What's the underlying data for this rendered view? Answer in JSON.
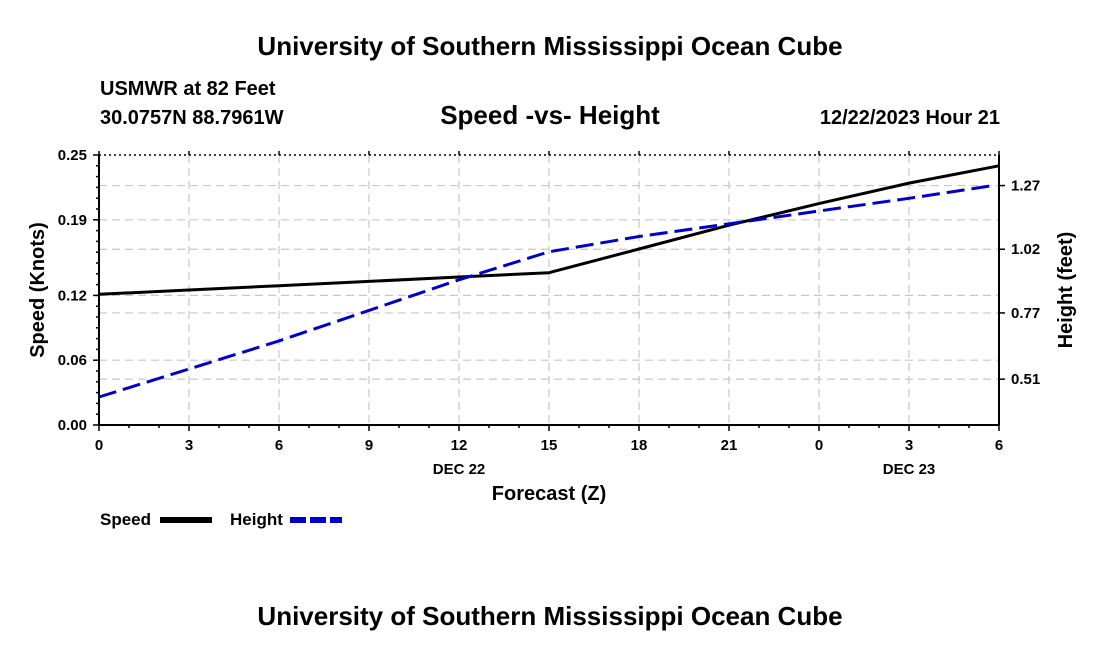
{
  "header": {
    "title_top": "University of Southern Mississippi Ocean Cube",
    "station": "USMWR at 82 Feet",
    "location": "30.0757N  88.7961W",
    "timestamp": "12/22/2023 Hour 21",
    "title_bottom": "University of Southern Mississippi Ocean Cube"
  },
  "chart_data": {
    "type": "line",
    "title": "Speed -vs- Height",
    "xlabel": "Forecast (Z)",
    "ylabel_left": "Speed (Knots)",
    "ylabel_right": "Height (feet)",
    "x_hours": [
      0,
      3,
      6,
      9,
      12,
      15,
      18,
      21,
      24,
      27,
      30
    ],
    "x_tick_labels": [
      "0",
      "3",
      "6",
      "9",
      "12",
      "15",
      "18",
      "21",
      "0",
      "3",
      "6"
    ],
    "date_labels": [
      {
        "hour": 12,
        "label": "DEC 22"
      },
      {
        "hour": 27,
        "label": "DEC 23"
      }
    ],
    "xlim": [
      0,
      30
    ],
    "ylim_left": [
      0,
      0.25
    ],
    "yticks_left": [
      0.0,
      0.06,
      0.12,
      0.19,
      0.25
    ],
    "ytick_labels_left": [
      "0.00",
      "0.06",
      "0.12",
      "0.19",
      "0.25"
    ],
    "ylim_right": [
      0.33,
      1.39
    ],
    "yticks_right": [
      0.51,
      0.77,
      1.02,
      1.27
    ],
    "ytick_labels_right": [
      "0.51",
      "0.77",
      "1.02",
      "1.27"
    ],
    "grid": true,
    "legend_position": "bottom-left",
    "series": [
      {
        "name": "Speed",
        "axis": "left",
        "color": "#000000",
        "style": "solid",
        "x": [
          0,
          3,
          6,
          9,
          12,
          15,
          18,
          21,
          24,
          27,
          30
        ],
        "values": [
          0.121,
          0.125,
          0.129,
          0.133,
          0.137,
          0.141,
          0.163,
          0.185,
          0.205,
          0.224,
          0.24
        ]
      },
      {
        "name": "Height",
        "axis": "right",
        "color": "#0000cc",
        "style": "dashed",
        "x": [
          0,
          3,
          6,
          9,
          12,
          15,
          18,
          21,
          24,
          27,
          29.8
        ],
        "values": [
          0.44,
          0.55,
          0.66,
          0.78,
          0.9,
          1.01,
          1.07,
          1.12,
          1.17,
          1.22,
          1.27
        ]
      }
    ]
  }
}
